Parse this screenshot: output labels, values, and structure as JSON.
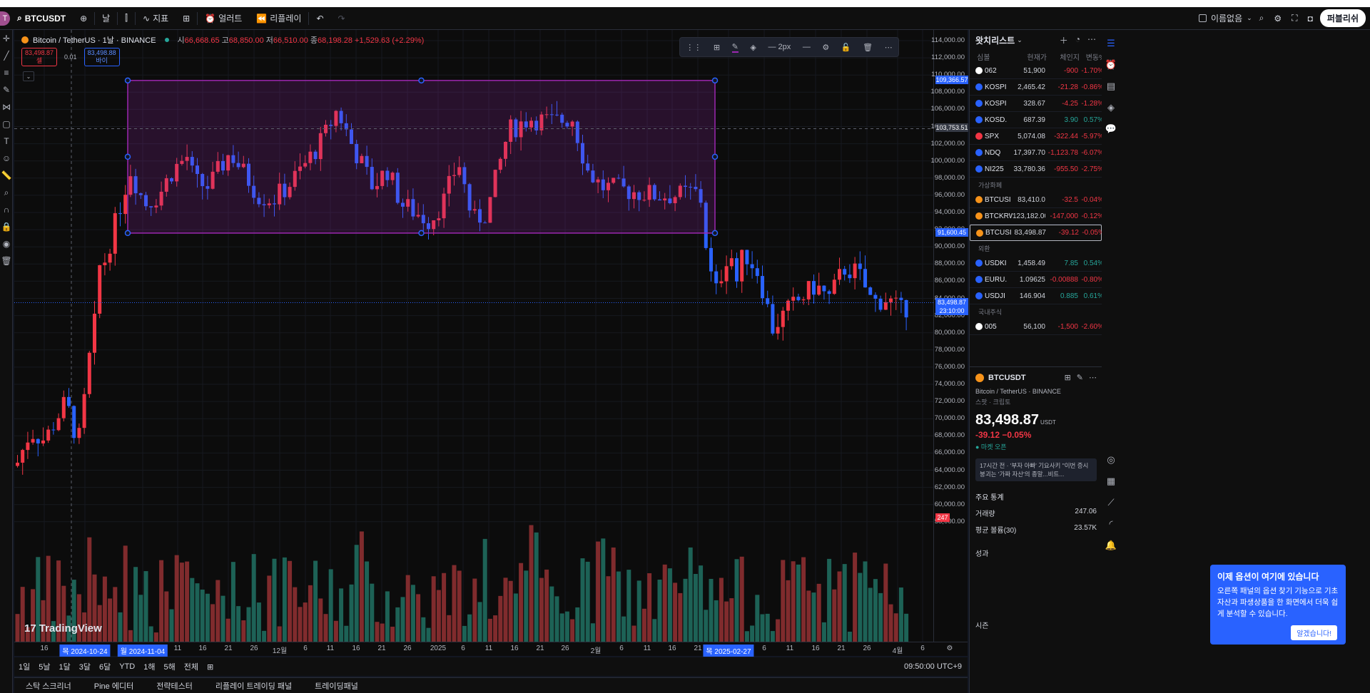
{
  "topbar": {
    "avatar": "T",
    "symbol": "BTCUSDT",
    "interval": "날",
    "indicators": "지표",
    "alerts": "얼러트",
    "replay": "리플레이",
    "layout_name": "이름없음",
    "publish": "퍼블리쉬"
  },
  "legend": {
    "title": "Bitcoin / TetherUS · 1날 · BINANCE",
    "o_label": "시",
    "o": "66,668.65",
    "h_label": "고",
    "h": "68,850.00",
    "l_label": "저",
    "l": "66,510.00",
    "c_label": "종",
    "c": "68,198.28",
    "change": "+1,529.63 (+2.29%)"
  },
  "orderbox": {
    "sell_price": "83,498.87",
    "sell_label": "셀",
    "spread": "0.01",
    "buy_price": "83,498.88",
    "buy_label": "바이"
  },
  "drawtoolbar": {
    "width_label": "2px"
  },
  "watermark": "TradingView",
  "price_scale": {
    "labels": [
      "114,000.00",
      "112,000.00",
      "110,000.00",
      "108,000.00",
      "106,000.00",
      "104,000.00",
      "102,000.00",
      "100,000.00",
      "98,000.00",
      "96,000.00",
      "94,000.00",
      "92,000.00",
      "90,000.00",
      "88,000.00",
      "86,000.00",
      "84,000.00",
      "82,000.00",
      "80,000.00",
      "78,000.00",
      "76,000.00",
      "74,000.00",
      "72,000.00",
      "70,000.00",
      "68,000.00",
      "66,000.00",
      "64,000.00",
      "62,000.00",
      "60,000.00",
      "58,000.00"
    ],
    "rect_top_label": "109,366.57",
    "crosshair_label": "103,753.51",
    "rect_bottom_label": "91,600.45",
    "last_price": "83,498.87",
    "countdown": "23:10:00",
    "volume_badge": "247"
  },
  "time_axis": {
    "labels": [
      "16",
      "목 2024-10-24",
      "월 2024-11-04",
      "11",
      "16",
      "21",
      "26",
      "12월",
      "6",
      "11",
      "16",
      "21",
      "26",
      "2025",
      "6",
      "11",
      "16",
      "21",
      "26",
      "2월",
      "6",
      "11",
      "16",
      "21",
      "목 2025-02-27",
      "6",
      "11",
      "16",
      "21",
      "26",
      "4월",
      "6"
    ],
    "highlighted": [
      "목 2024-10-24",
      "월 2024-11-04",
      "목 2025-02-27"
    ]
  },
  "rangebar": {
    "ranges": [
      "1일",
      "5날",
      "1달",
      "3달",
      "6달",
      "YTD",
      "1해",
      "5해",
      "전체"
    ],
    "clock": "09:50:00 UTC+9"
  },
  "bottombar": {
    "tabs": [
      "스탁 스크리너",
      "Pine 에디터",
      "전략테스터",
      "리플레이 트레이딩 패널",
      "트레이딩패널"
    ]
  },
  "watchlist": {
    "title": "왓치리스트",
    "columns": [
      "심볼",
      "현재가",
      "체인지",
      "변동%"
    ],
    "rows1": [
      {
        "sym": "062",
        "price": "51,900",
        "chg": "-900",
        "pct": "-1.70%",
        "color": "#ffffff",
        "dir": "neg"
      },
      {
        "sym": "KOSPI",
        "price": "2,465.42",
        "chg": "-21.28",
        "pct": "-0.86%",
        "color": "#2962ff",
        "dir": "neg"
      },
      {
        "sym": "KOSPI",
        "price": "328.67",
        "chg": "-4.25",
        "pct": "-1.28%",
        "color": "#2962ff",
        "dir": "neg"
      },
      {
        "sym": "KOSD.",
        "price": "687.39",
        "chg": "3.90",
        "pct": "0.57%",
        "color": "#2962ff",
        "dir": "pos"
      },
      {
        "sym": "SPX",
        "price": "5,074.08",
        "chg": "-322.44",
        "pct": "-5.97%",
        "color": "#f23645",
        "dir": "neg"
      },
      {
        "sym": "NDQ",
        "price": "17,397.70",
        "chg": "-1,123.78",
        "pct": "-6.07%",
        "color": "#2962ff",
        "dir": "neg"
      },
      {
        "sym": "NI225",
        "price": "33,780.36",
        "chg": "-955.50",
        "pct": "-2.75%",
        "color": "#2962ff",
        "dir": "neg"
      }
    ],
    "section_crypto": "가상화폐",
    "rows2": [
      {
        "sym": "BTCUSI",
        "price": "83,410.0",
        "chg": "-32.5",
        "pct": "-0.04%",
        "color": "#f7931a",
        "dir": "neg"
      },
      {
        "sym": "BTCKRW",
        "price": "123,182.00",
        "chg": "-147,000",
        "pct": "-0.12%",
        "color": "#f7931a",
        "dir": "neg"
      },
      {
        "sym": "BTCUSI",
        "price": "83,498.87",
        "chg": "-39.12",
        "pct": "-0.05%",
        "color": "#f7931a",
        "dir": "neg"
      }
    ],
    "section_fx": "외환",
    "rows3": [
      {
        "sym": "USDKI",
        "price": "1,458.49",
        "chg": "7.85",
        "pct": "0.54%",
        "color": "#2962ff",
        "dir": "pos"
      },
      {
        "sym": "EURU.",
        "price": "1.09625",
        "chg": "-0.00888",
        "pct": "-0.80%",
        "color": "#2962ff",
        "dir": "neg"
      },
      {
        "sym": "USDJI",
        "price": "146.904",
        "chg": "0.885",
        "pct": "0.61%",
        "color": "#2962ff",
        "dir": "pos"
      }
    ],
    "section_kr": "국내주식",
    "rows4": [
      {
        "sym": "005",
        "price": "56,100",
        "chg": "-1,500",
        "pct": "-2.60%",
        "color": "#ffffff",
        "dir": "neg"
      }
    ]
  },
  "details": {
    "symbol": "BTCUSDT",
    "description": "Bitcoin / TetherUS · BINANCE",
    "sub": "스팟 · 크립토",
    "price": "83,498.87",
    "currency": "USDT",
    "change": "-39.12 −0.05%",
    "market_status": "● 마켓 오픈",
    "news": "17시간 전 · '부자 아빠' 기요사키 \"이번 증시 붕괴는 '가짜 자산'의 종말...비트...",
    "stats_title": "주요 통계",
    "volume_label": "거래량",
    "volume": "247.06",
    "avg_volume_label": "평균 볼륨(30)",
    "avg_volume": "23.57K",
    "perf_label": "성과",
    "season_label": "시즌"
  },
  "tooltip": {
    "title": "이제 옵션이 여기에 있습니다",
    "body": "오른쪽 패널의 옵션 찾기 기능으로 기초자산과 파생상품을 한 화면에서 더욱 쉽게 분석할 수 있습니다.",
    "ok": "알겠습니다!"
  },
  "chart_data": {
    "type": "candlestick",
    "title": "Bitcoin / TetherUS · 1날 · BINANCE",
    "ylim": [
      57000,
      115000
    ],
    "x_range": [
      "2024-10-15",
      "2025-04-06"
    ],
    "rectangle": {
      "top": 109366.57,
      "bottom": 91600.45,
      "from": "2024-11-11",
      "to": "2025-03-02",
      "color": "#9c27b0"
    },
    "last_price": 83498.87,
    "ohlc_shown": {
      "open": 66668.65,
      "high": 68850.0,
      "low": 66510.0,
      "close": 68198.28
    },
    "colors": {
      "up": "#f23645",
      "down": "#2962ff",
      "vol_up": "#8d2f31",
      "vol_down": "#1f6b5e"
    }
  }
}
